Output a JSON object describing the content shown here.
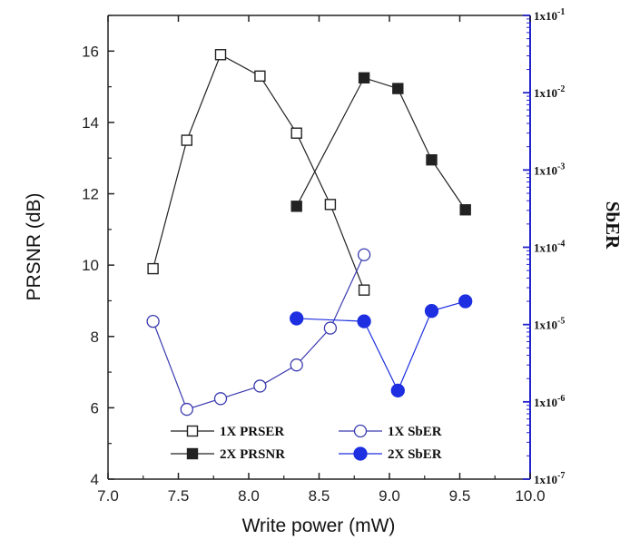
{
  "chart_data": {
    "type": "line",
    "xlabel": "Write power (mW)",
    "ylabel": "PRSNR (dB)",
    "y2label": "SbER",
    "xlim": [
      7.0,
      10.0
    ],
    "ylim": [
      4,
      17
    ],
    "y2lim_log10": [
      -7,
      -1
    ],
    "y2_scale": "log",
    "x_ticks": [
      "7.0",
      "7.5",
      "8.0",
      "8.5",
      "9.0",
      "9.5",
      "10.0"
    ],
    "y_ticks": [
      "4",
      "6",
      "8",
      "10",
      "12",
      "14",
      "16"
    ],
    "y2_ticks": [
      {
        "base": "1x10",
        "exp": "-1"
      },
      {
        "base": "1x10",
        "exp": "-2"
      },
      {
        "base": "1x10",
        "exp": "-3"
      },
      {
        "base": "1x10",
        "exp": "-4"
      },
      {
        "base": "1x10",
        "exp": "-5"
      },
      {
        "base": "1x10",
        "exp": "-6"
      },
      {
        "base": "1x10",
        "exp": "-7"
      }
    ],
    "legend_position": "bottom-center",
    "series": [
      {
        "name": "1X PRSER",
        "axis": "left",
        "marker": "open-square",
        "color": "#222222",
        "x": [
          7.32,
          7.56,
          7.8,
          8.08,
          8.34,
          8.58,
          8.82
        ],
        "y": [
          9.9,
          13.5,
          15.9,
          15.3,
          13.7,
          11.7,
          9.3
        ]
      },
      {
        "name": "2X PRSNR",
        "axis": "left",
        "marker": "filled-square",
        "color": "#222222",
        "x": [
          8.34,
          8.82,
          9.06,
          9.3,
          9.54
        ],
        "y": [
          11.65,
          15.25,
          14.95,
          12.95,
          11.55
        ]
      },
      {
        "name": "1X SbER",
        "axis": "right",
        "marker": "open-circle",
        "color": "#3b3bb0",
        "x": [
          7.32,
          7.56,
          7.8,
          8.08,
          8.34,
          8.58,
          8.82
        ],
        "y": [
          1.1e-05,
          8e-07,
          1.1e-06,
          1.6e-06,
          3e-06,
          9e-06,
          8e-05
        ]
      },
      {
        "name": "2X SbER",
        "axis": "right",
        "marker": "filled-circle",
        "color": "#1d2fe0",
        "x": [
          8.34,
          8.82,
          9.06,
          9.3,
          9.54
        ],
        "y": [
          1.2e-05,
          1.1e-05,
          1.4e-06,
          1.5e-05,
          2e-05
        ]
      }
    ],
    "axis_colors": {
      "left": "#222222",
      "right": "#2222cc"
    }
  }
}
